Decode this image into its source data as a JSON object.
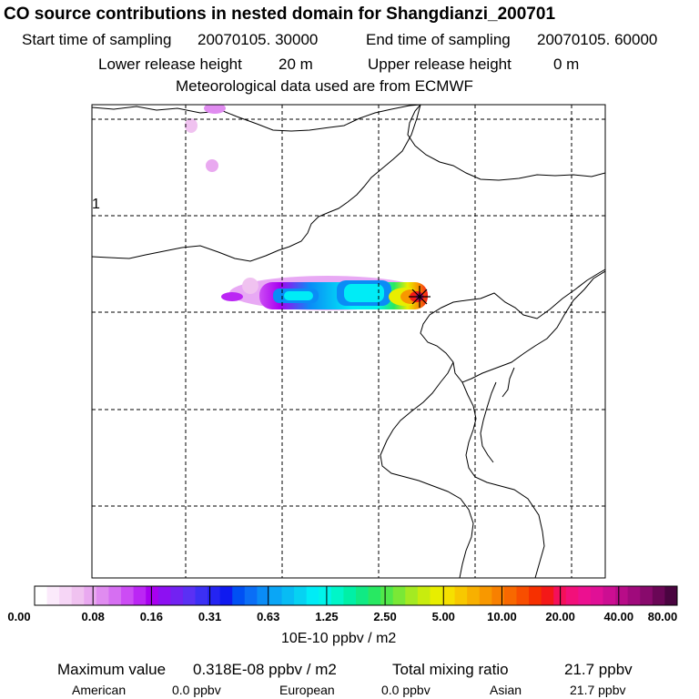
{
  "header": {
    "title": "CO  source contributions in nested domain for Shangdianzi_200701",
    "start_label": "Start time of sampling",
    "start_value": "20070105. 30000",
    "end_label": "End time of sampling",
    "end_value": "20070105. 60000",
    "lower_label": "Lower release height",
    "lower_value": "20 m",
    "upper_label": "Upper release height",
    "upper_value": "0 m",
    "met_line": "Meteorological data used are from ECMWF"
  },
  "map": {
    "grid_label": "1",
    "receptor_marker": "star-marker"
  },
  "colorbar": {
    "tick_labels": [
      "0.00",
      "0.08",
      "0.16",
      "0.31",
      "0.63",
      "1.25",
      "2.50",
      "5.00",
      "10.00",
      "20.00",
      "40.00",
      "80.00"
    ],
    "unit": "10E-10 ppbv / m2",
    "colors": [
      "#ffffff",
      "#fbeafb",
      "#f6d6f6",
      "#f0c2f0",
      "#e9a9f0",
      "#e08cf0",
      "#d66ff2",
      "#cc4cf4",
      "#bb26f4",
      "#a800f0",
      "#8d10f2",
      "#7222f2",
      "#5a30f4",
      "#3c30f4",
      "#2424f2",
      "#0f1af0",
      "#0050f4",
      "#0a6ef6",
      "#0a8cf6",
      "#0aa6f6",
      "#08bcf4",
      "#06d2f2",
      "#00ecf6",
      "#00f4ea",
      "#00f6c8",
      "#00f0a6",
      "#10ea84",
      "#28e862",
      "#50e84a",
      "#7ae836",
      "#a4ea22",
      "#c8ec0e",
      "#e8ee00",
      "#f6e000",
      "#f8c800",
      "#f8b000",
      "#f89800",
      "#f88000",
      "#f86800",
      "#f84e00",
      "#f63000",
      "#f41818",
      "#f4105a",
      "#f2107a",
      "#ec1090",
      "#e01096",
      "#cc0e92",
      "#b80c88",
      "#a00a7c",
      "#880a6c",
      "#6a0656",
      "#4a0440"
    ]
  },
  "stats": {
    "max_label": "Maximum value",
    "max_value": "0.318E-08 ppbv / m2",
    "total_label": "Total mixing ratio",
    "total_value": "21.7 ppbv",
    "american_label": "American",
    "american_value": "0.0 ppbv",
    "european_label": "European",
    "european_value": "0.0 ppbv",
    "asian_label": "Asian",
    "asian_value": "21.7 ppbv"
  }
}
